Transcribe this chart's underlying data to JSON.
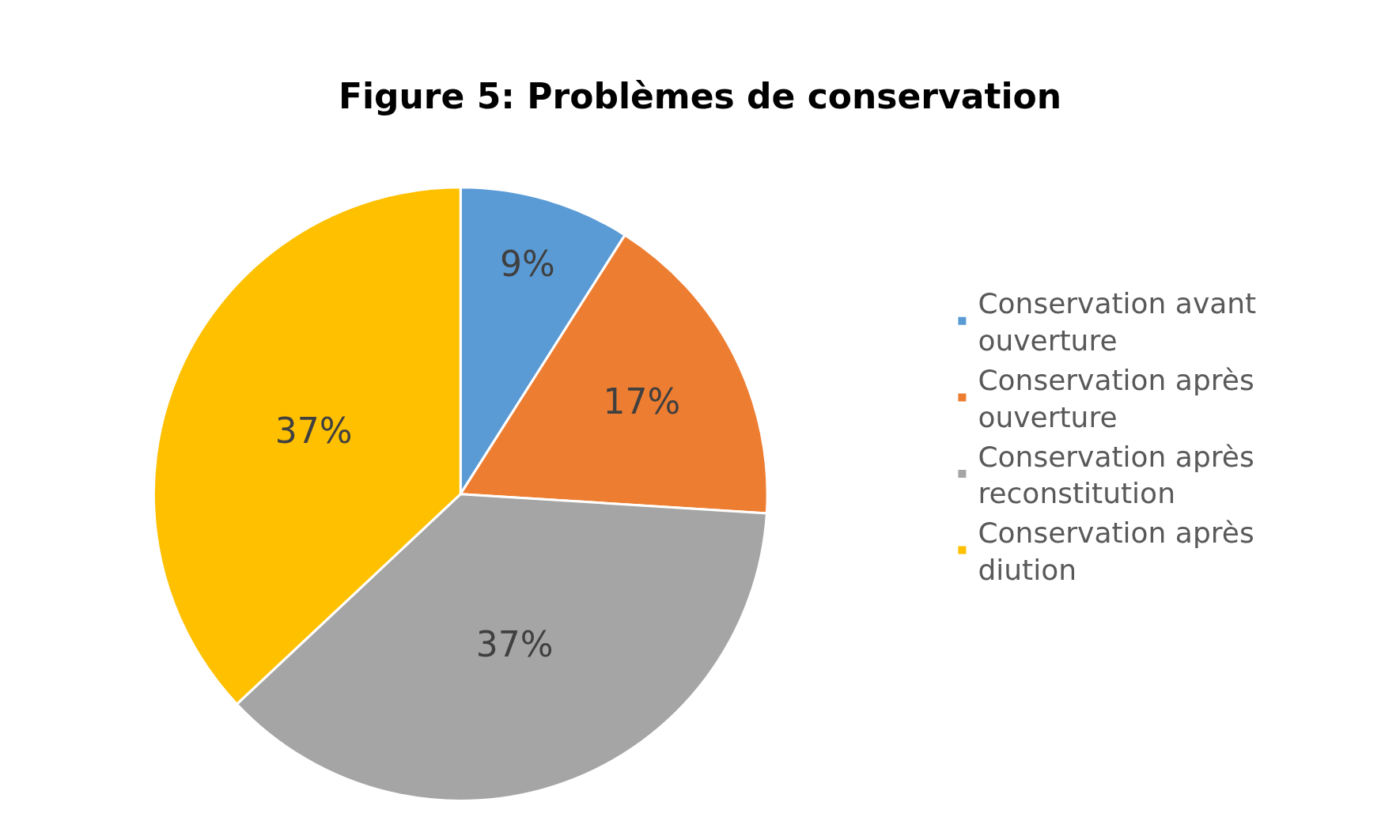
{
  "chart_data": {
    "type": "pie",
    "title": "Figure 5: Problèmes de conservation",
    "categories": [
      "Conservation avant ouverture",
      "Conservation après ouverture",
      "Conservation après reconstitution",
      "Conservation après diution"
    ],
    "values": [
      9,
      17,
      37,
      37
    ],
    "value_labels": [
      "9%",
      "17%",
      "37%",
      "37%"
    ],
    "colors": [
      "#5b9bd5",
      "#ed7d31",
      "#a5a5a5",
      "#ffc000"
    ],
    "legend": "right"
  }
}
